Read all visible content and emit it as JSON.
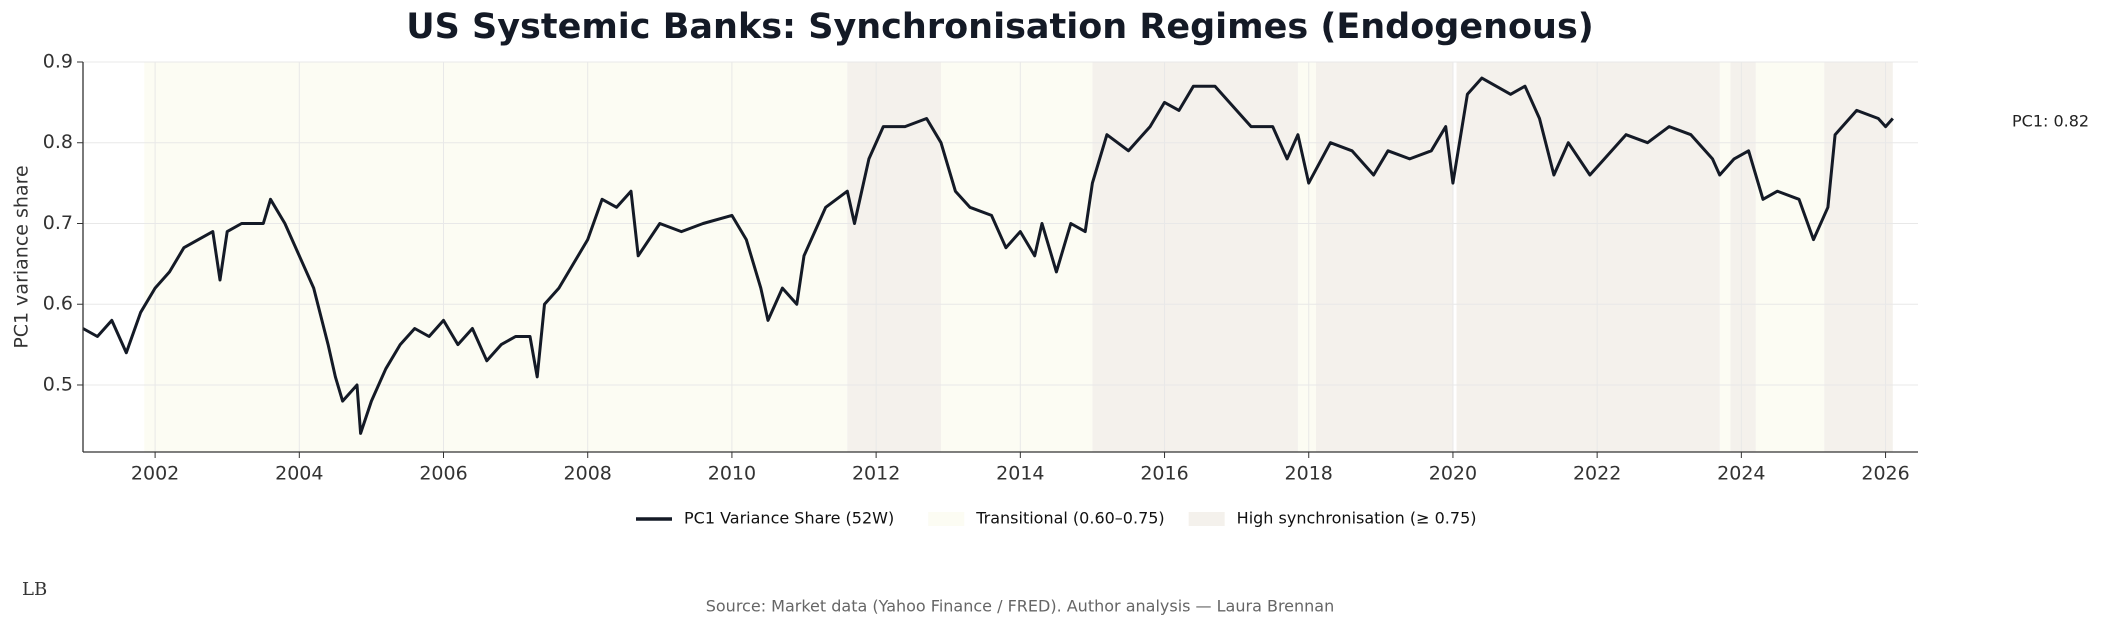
{
  "chart_data": {
    "type": "line",
    "title": "US Systemic Banks: Synchronisation Regimes (Endogenous)",
    "y_label": "PC1 variance share",
    "annotation": "PC1: 0.82",
    "source": "Source: Market data (Yahoo Finance / FRED). Author analysis — Laura Brennan",
    "logo": "LB",
    "grid": true,
    "xlim": [
      2001.0,
      2026.45
    ],
    "ylim": [
      0.417,
      0.9
    ],
    "xticks": [
      2002,
      2004,
      2006,
      2008,
      2010,
      2012,
      2014,
      2016,
      2018,
      2020,
      2022,
      2024,
      2026
    ],
    "yticks": [
      0.5,
      0.6,
      0.7,
      0.8,
      0.9
    ],
    "regimes": [
      {
        "name": "Transitional (0.60–0.75)",
        "color": "#fcfcf3",
        "spans": [
          [
            2001.85,
            2011.6
          ],
          [
            2012.9,
            2015.0
          ],
          [
            2017.85,
            2018.1
          ],
          [
            2023.7,
            2023.85
          ],
          [
            2024.2,
            2025.15
          ]
        ]
      },
      {
        "name": "High synchronisation (≥ 0.75)",
        "color": "#f4f1ec",
        "spans": [
          [
            2011.6,
            2012.9
          ],
          [
            2015.0,
            2017.85
          ],
          [
            2018.1,
            2020.0
          ],
          [
            2020.05,
            2023.7
          ],
          [
            2023.85,
            2024.2
          ],
          [
            2025.15,
            2026.1
          ]
        ]
      }
    ],
    "x": [
      2001.0,
      2001.2,
      2001.4,
      2001.6,
      2001.8,
      2002.0,
      2002.2,
      2002.4,
      2002.6,
      2002.8,
      2002.9,
      2003.0,
      2003.2,
      2003.5,
      2003.6,
      2003.8,
      2004.0,
      2004.2,
      2004.4,
      2004.5,
      2004.6,
      2004.8,
      2004.85,
      2005.0,
      2005.2,
      2005.4,
      2005.6,
      2005.8,
      2006.0,
      2006.2,
      2006.4,
      2006.6,
      2006.8,
      2007.0,
      2007.2,
      2007.3,
      2007.4,
      2007.6,
      2007.8,
      2008.0,
      2008.2,
      2008.4,
      2008.6,
      2008.7,
      2009.0,
      2009.3,
      2009.6,
      2010.0,
      2010.2,
      2010.4,
      2010.5,
      2010.7,
      2010.9,
      2011.0,
      2011.3,
      2011.6,
      2011.7,
      2011.9,
      2012.1,
      2012.4,
      2012.7,
      2012.9,
      2013.1,
      2013.3,
      2013.6,
      2013.8,
      2014.0,
      2014.2,
      2014.3,
      2014.5,
      2014.7,
      2014.9,
      2015.0,
      2015.2,
      2015.5,
      2015.8,
      2016.0,
      2016.2,
      2016.4,
      2016.7,
      2016.9,
      2017.2,
      2017.5,
      2017.7,
      2017.85,
      2018.0,
      2018.3,
      2018.6,
      2018.9,
      2019.1,
      2019.4,
      2019.7,
      2019.9,
      2020.0,
      2020.2,
      2020.4,
      2020.8,
      2021.0,
      2021.2,
      2021.4,
      2021.6,
      2021.9,
      2022.1,
      2022.4,
      2022.7,
      2023.0,
      2023.3,
      2023.6,
      2023.7,
      2023.9,
      2024.1,
      2024.3,
      2024.5,
      2024.8,
      2025.0,
      2025.2,
      2025.3,
      2025.6,
      2025.9,
      2026.0,
      2026.1
    ],
    "series": [
      {
        "name": "PC1 Variance Share (52W)",
        "color": "#141a26",
        "values": [
          0.57,
          0.56,
          0.58,
          0.54,
          0.59,
          0.62,
          0.64,
          0.67,
          0.68,
          0.69,
          0.63,
          0.69,
          0.7,
          0.7,
          0.73,
          0.7,
          0.66,
          0.62,
          0.55,
          0.51,
          0.48,
          0.5,
          0.44,
          0.48,
          0.52,
          0.55,
          0.57,
          0.56,
          0.58,
          0.55,
          0.57,
          0.53,
          0.55,
          0.56,
          0.56,
          0.51,
          0.6,
          0.62,
          0.65,
          0.68,
          0.73,
          0.72,
          0.74,
          0.66,
          0.7,
          0.69,
          0.7,
          0.71,
          0.68,
          0.62,
          0.58,
          0.62,
          0.6,
          0.66,
          0.72,
          0.74,
          0.7,
          0.78,
          0.82,
          0.82,
          0.83,
          0.8,
          0.74,
          0.72,
          0.71,
          0.67,
          0.69,
          0.66,
          0.7,
          0.64,
          0.7,
          0.69,
          0.75,
          0.81,
          0.79,
          0.82,
          0.85,
          0.84,
          0.87,
          0.87,
          0.85,
          0.82,
          0.82,
          0.78,
          0.81,
          0.75,
          0.8,
          0.79,
          0.76,
          0.79,
          0.78,
          0.79,
          0.82,
          0.75,
          0.86,
          0.88,
          0.86,
          0.87,
          0.83,
          0.76,
          0.8,
          0.76,
          0.78,
          0.81,
          0.8,
          0.82,
          0.81,
          0.78,
          0.76,
          0.78,
          0.79,
          0.73,
          0.74,
          0.73,
          0.68,
          0.72,
          0.81,
          0.84,
          0.83,
          0.82,
          0.83
        ]
      }
    ]
  }
}
